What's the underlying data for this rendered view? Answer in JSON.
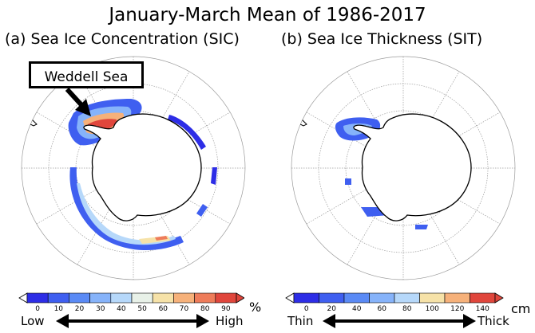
{
  "title": "January-March Mean of 1986-2017",
  "panel_a": {
    "label": "(a) Sea Ice Concentration (SIC)",
    "callout": "Weddell Sea",
    "colorbar": {
      "ticks": [
        "0",
        "10",
        "20",
        "30",
        "40",
        "50",
        "60",
        "70",
        "80",
        "90"
      ],
      "unit": "%",
      "low_label": "Low",
      "high_label": "High"
    }
  },
  "panel_b": {
    "label": "(b) Sea Ice Thickness (SIT)",
    "colorbar": {
      "ticks": [
        "0",
        "20",
        "40",
        "60",
        "80",
        "100",
        "120",
        "140"
      ],
      "unit": "cm",
      "low_label": "Thin",
      "high_label": "Thick"
    }
  },
  "colors": {
    "sic": [
      "#2d2de6",
      "#3f5ff0",
      "#5a8af5",
      "#86b3fa",
      "#b6d8fa",
      "#e8f1e8",
      "#f6e2a8",
      "#f6b17a",
      "#ee7c5a",
      "#e0463c"
    ],
    "sit": [
      "#2d2de6",
      "#3f5ff0",
      "#5a8af5",
      "#86b3fa",
      "#b6d8fa",
      "#f6e2a8",
      "#f6b17a",
      "#e0463c"
    ]
  }
}
